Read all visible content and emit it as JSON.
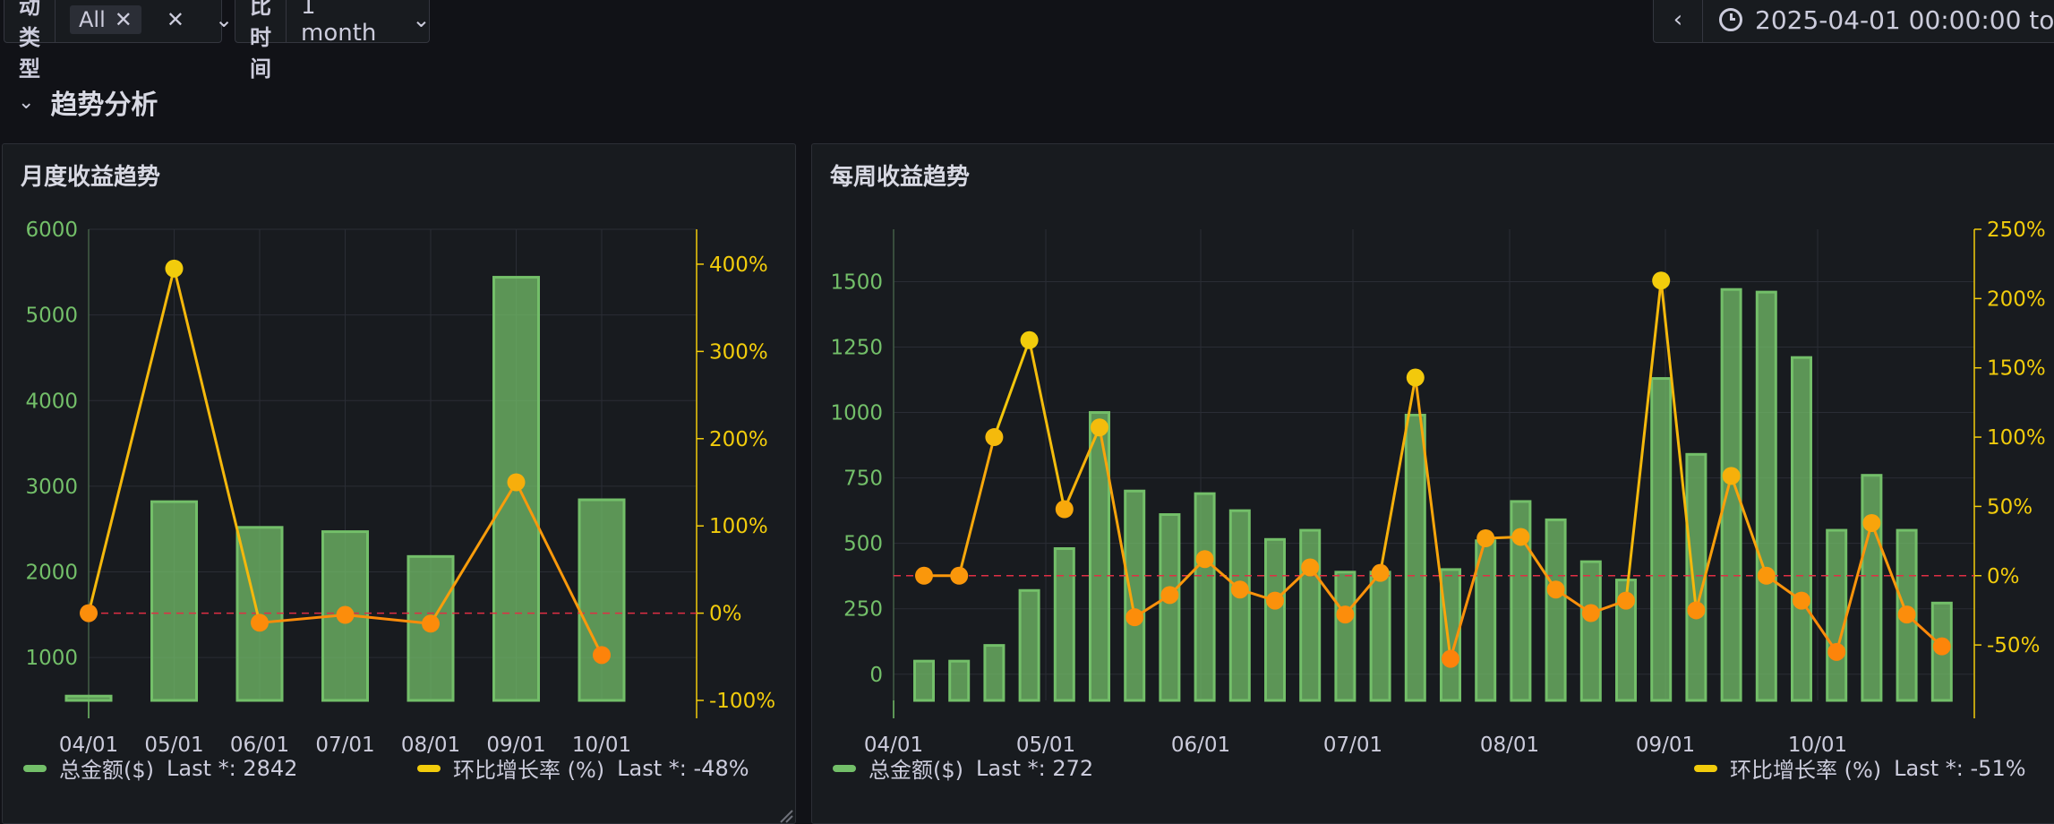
{
  "filters": {
    "activity_type": {
      "label": "活动类型",
      "chip": "All"
    },
    "compare_time": {
      "label": "对比时间",
      "value": "1 month"
    }
  },
  "time_range": {
    "text": "2025-04-01 00:00:00 to"
  },
  "row": {
    "title": "趋势分析"
  },
  "colors": {
    "bar": "#73bf69",
    "line": "#f2cc0c",
    "line_low": "#ff780a",
    "threshold": "#e02f44",
    "axis_left": "#73bf69",
    "axis_right": "#f2cc0c"
  },
  "panels": {
    "monthly": {
      "title": "月度收益趋势",
      "legend": [
        {
          "name": "总金额($)",
          "stat": "Last *: 2842"
        },
        {
          "name": "环比增长率 (%)",
          "stat": "Last *: -48%"
        }
      ]
    },
    "weekly": {
      "title": "每周收益趋势",
      "legend": [
        {
          "name": "总金额($)",
          "stat": "Last *: 272"
        },
        {
          "name": "环比增长率 (%)",
          "stat": "Last *: -51%"
        }
      ]
    }
  },
  "chart_data": [
    {
      "type": "bar",
      "title": "月度收益趋势",
      "categories": [
        "04/01",
        "05/01",
        "06/01",
        "07/01",
        "08/01",
        "09/01",
        "10/01"
      ],
      "series": [
        {
          "name": "总金额($)",
          "type": "bar",
          "axis": "left",
          "values": [
            550,
            2820,
            2520,
            2470,
            2180,
            5440,
            2842
          ]
        },
        {
          "name": "环比增长率 (%)",
          "type": "line",
          "axis": "right",
          "values": [
            0,
            395,
            -11,
            -2,
            -12,
            150,
            -48
          ]
        }
      ],
      "y_left": {
        "ticks": [
          1000,
          2000,
          3000,
          4000,
          5000,
          6000
        ],
        "range": [
          500,
          6000
        ]
      },
      "y_right": {
        "ticks": [
          "400%",
          "300%",
          "200%",
          "100%",
          "0%",
          "-100%"
        ],
        "range": [
          -100,
          440
        ]
      },
      "threshold_right": 0,
      "grid": true,
      "legend": "bottom"
    },
    {
      "type": "bar",
      "title": "每周收益趋势",
      "x_labels": [
        "04/01",
        "05/01",
        "06/01",
        "07/01",
        "08/01",
        "09/01",
        "10/01"
      ],
      "series": [
        {
          "name": "总金额($)",
          "type": "bar",
          "axis": "left",
          "values": [
            50,
            50,
            110,
            320,
            480,
            1000,
            700,
            610,
            690,
            625,
            515,
            550,
            390,
            390,
            990,
            400,
            510,
            660,
            590,
            430,
            360,
            1130,
            840,
            1470,
            1460,
            1210,
            550,
            760,
            550,
            272
          ]
        },
        {
          "name": "环比增长率 (%)",
          "type": "line",
          "axis": "right",
          "values": [
            0,
            0,
            100,
            170,
            48,
            107,
            -30,
            -14,
            12,
            -10,
            -18,
            6,
            -28,
            2,
            143,
            -60,
            27,
            28,
            -10,
            -27,
            -18,
            213,
            -25,
            72,
            0,
            -18,
            -55,
            38,
            -28,
            -51
          ]
        }
      ],
      "y_left": {
        "ticks": [
          0,
          250,
          500,
          750,
          1000,
          1250,
          1500
        ],
        "range": [
          -100,
          1700
        ]
      },
      "y_right": {
        "ticks": [
          "250%",
          "200%",
          "150%",
          "100%",
          "50%",
          "0%",
          "-50%"
        ],
        "range": [
          -90,
          250
        ]
      },
      "threshold_right": 0,
      "grid": true,
      "legend": "bottom"
    }
  ]
}
